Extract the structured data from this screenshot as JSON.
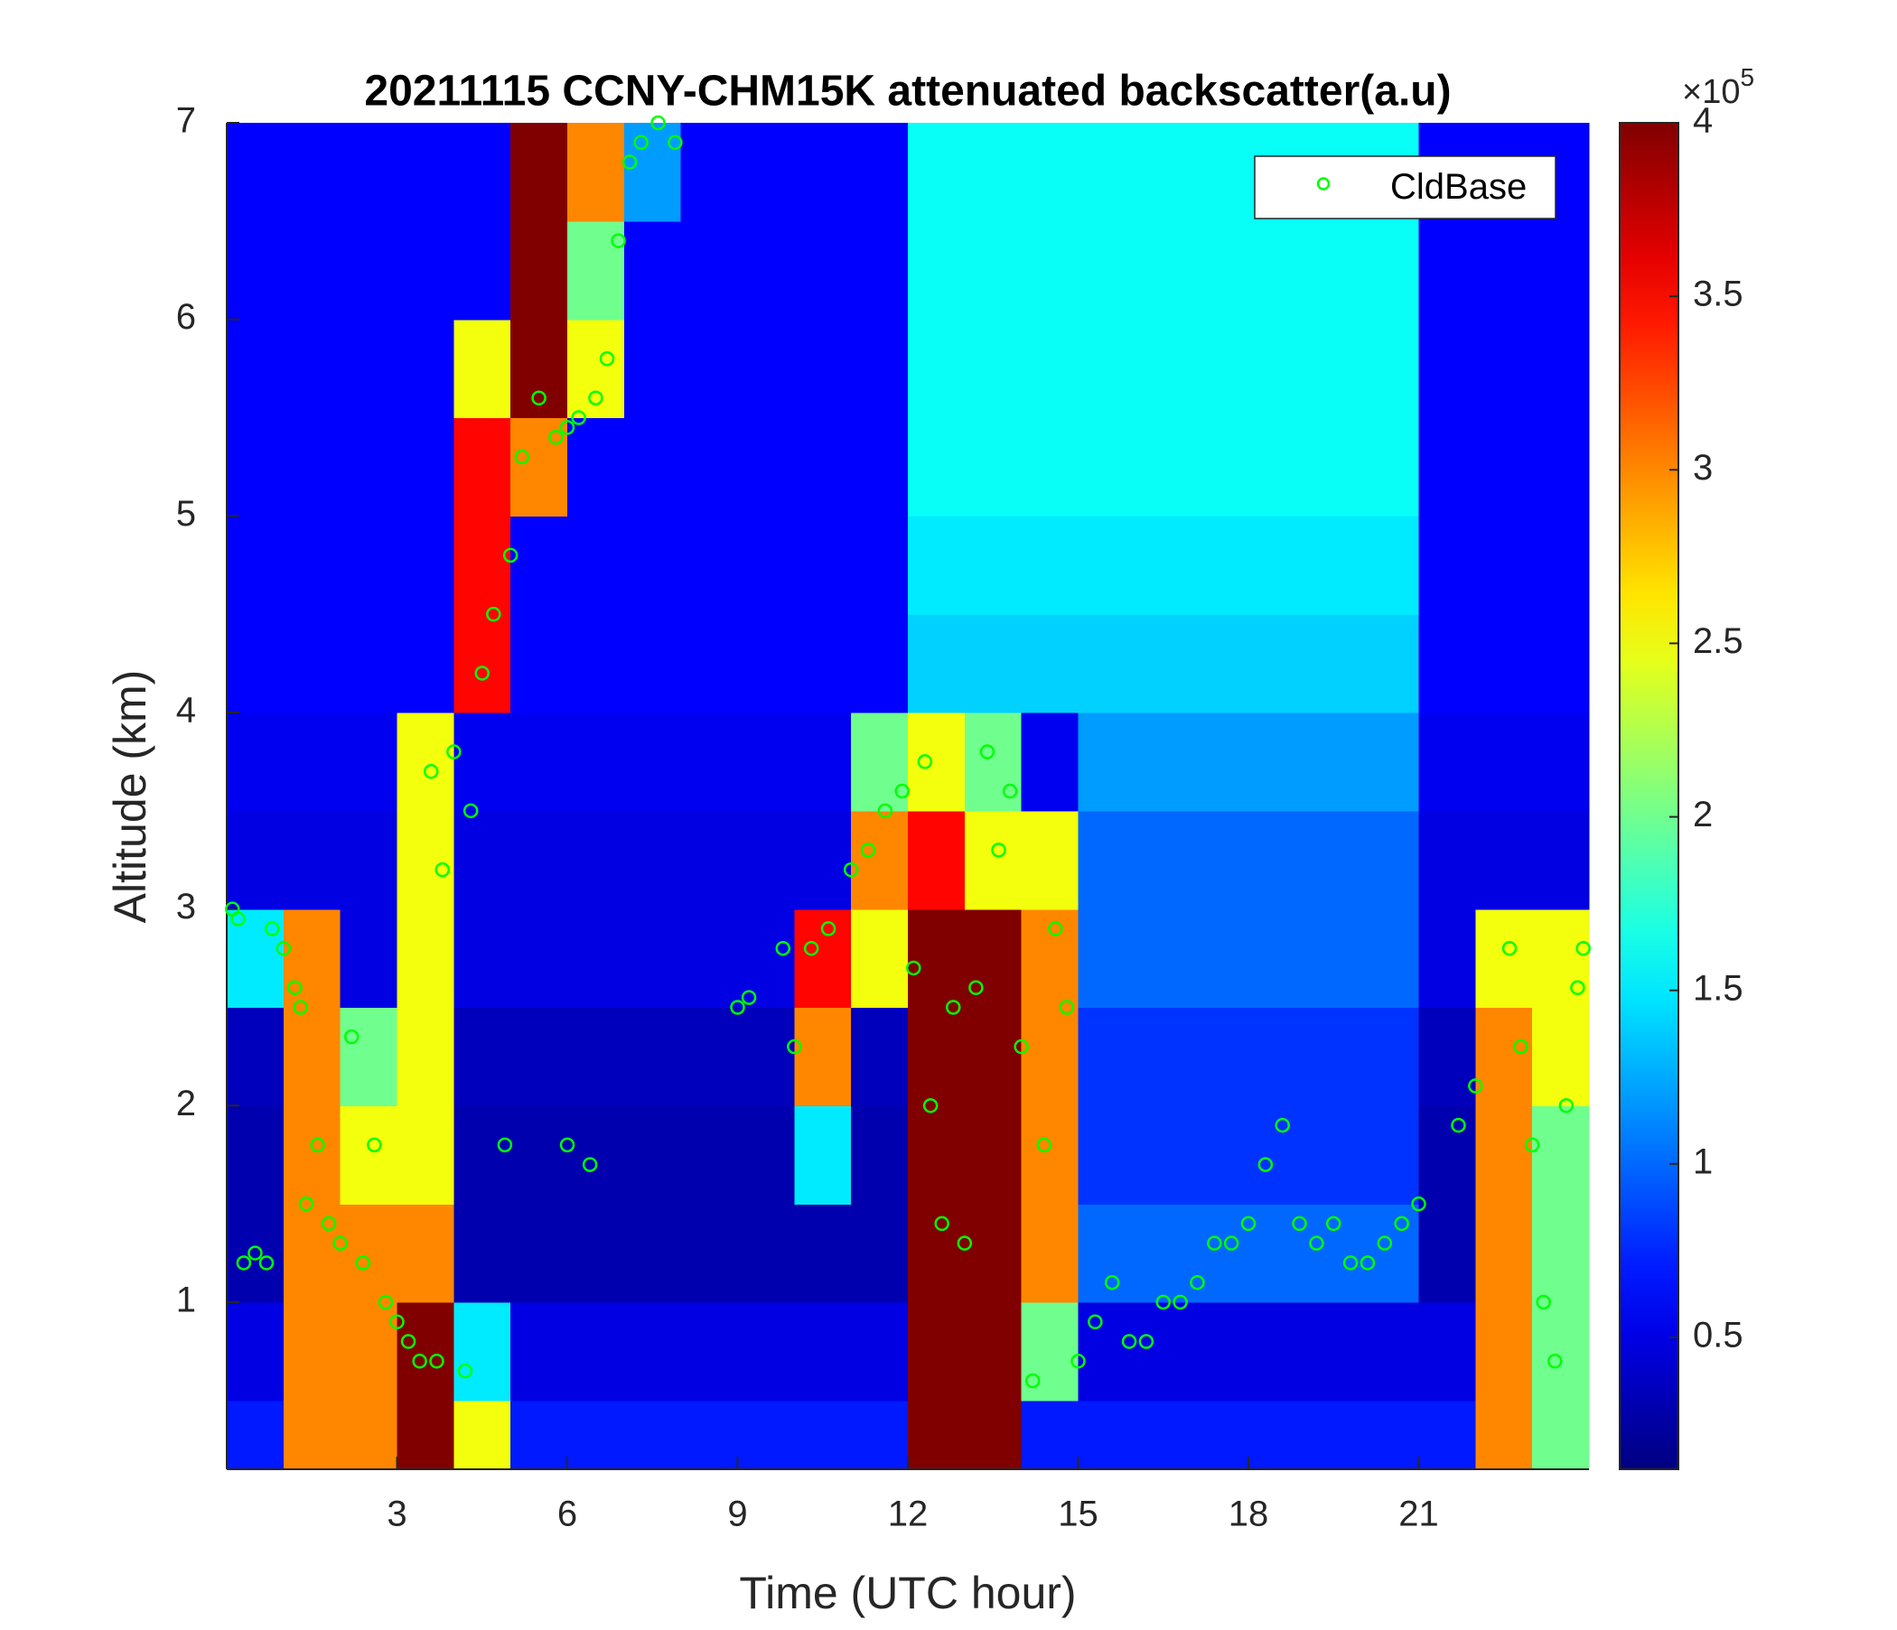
{
  "chart_data": {
    "type": "heatmap",
    "title": "20211115 CCNY-CHM15K attenuated backscatter(a.u)",
    "xlabel": "Time (UTC hour)",
    "ylabel": "Altitude (km)",
    "xlim": [
      0,
      24
    ],
    "xticks": [
      3,
      6,
      9,
      12,
      15,
      18,
      21
    ],
    "ylim": [
      0.15,
      7
    ],
    "yticks": [
      1,
      2,
      3,
      4,
      5,
      6,
      7
    ],
    "colormap": "jet",
    "clim": [
      0.12,
      4
    ],
    "cticks": [
      0.5,
      1,
      1.5,
      2,
      2.5,
      3,
      3.5,
      4
    ],
    "colorbar_multiplier": {
      "base": "×10",
      "exponent": "5"
    },
    "xbins": [
      0,
      1,
      2,
      3,
      4,
      5,
      6,
      7,
      8,
      9,
      10,
      11,
      12,
      13,
      14,
      15,
      16,
      17,
      18,
      19,
      20,
      21,
      22,
      23,
      24
    ],
    "ybins": [
      0.15,
      0.5,
      1,
      1.5,
      2,
      2.5,
      3,
      3.5,
      4,
      4.5,
      5,
      5.5,
      6,
      6.5,
      7
    ],
    "z": [
      [
        0.7,
        3,
        3,
        4,
        2.5,
        0.7,
        0.7,
        0.7,
        0.7,
        0.7,
        0.7,
        0.7,
        4,
        4,
        0.7,
        0.7,
        0.7,
        0.7,
        0.7,
        0.7,
        0.7,
        0.7,
        3,
        2
      ],
      [
        0.5,
        3,
        3,
        4,
        1.5,
        0.5,
        0.5,
        0.5,
        0.5,
        0.5,
        0.5,
        0.5,
        4,
        4,
        2,
        0.5,
        0.5,
        0.5,
        0.5,
        0.5,
        0.5,
        0.5,
        3,
        2
      ],
      [
        0.3,
        3,
        3,
        3,
        0.3,
        0.3,
        0.3,
        0.3,
        0.3,
        0.3,
        0.3,
        0.3,
        4,
        4,
        3,
        1,
        1,
        1,
        1,
        1,
        1,
        0.3,
        3,
        2
      ],
      [
        0.3,
        3,
        2.5,
        2.5,
        0.3,
        0.3,
        0.3,
        0.3,
        0.3,
        0.3,
        1.5,
        0.3,
        4,
        4,
        3,
        0.8,
        0.8,
        0.8,
        0.8,
        0.8,
        0.8,
        0.3,
        3,
        2
      ],
      [
        0.35,
        3,
        2,
        2.5,
        0.35,
        0.35,
        0.35,
        0.35,
        0.35,
        0.35,
        3,
        0.35,
        4,
        4,
        3,
        0.8,
        0.8,
        0.8,
        0.8,
        0.8,
        0.8,
        0.35,
        3,
        2.5
      ],
      [
        1.5,
        3,
        0.5,
        2.5,
        0.5,
        0.5,
        0.5,
        0.5,
        0.5,
        0.5,
        3.5,
        2.5,
        4,
        4,
        3,
        1,
        1,
        1,
        1,
        1,
        1,
        0.5,
        2.5,
        2.5
      ],
      [
        0.5,
        0.5,
        0.5,
        2.5,
        0.5,
        0.5,
        0.5,
        0.5,
        0.5,
        0.5,
        0.5,
        3,
        3.5,
        2.5,
        2.5,
        1,
        1,
        1,
        1,
        1,
        1,
        0.5,
        0.5,
        0.5
      ],
      [
        0.55,
        0.55,
        0.55,
        2.5,
        0.55,
        0.55,
        0.55,
        0.55,
        0.55,
        0.55,
        0.55,
        2,
        2.5,
        2,
        0.55,
        1.2,
        1.2,
        1.2,
        1.2,
        1.2,
        1.2,
        0.55,
        0.55,
        0.55
      ],
      [
        0.6,
        0.6,
        0.6,
        0.6,
        3.5,
        0.6,
        0.6,
        0.6,
        0.6,
        0.6,
        0.6,
        0.6,
        1.4,
        1.4,
        1.4,
        1.4,
        1.4,
        1.4,
        1.4,
        1.4,
        1.4,
        0.6,
        0.6,
        0.6
      ],
      [
        0.6,
        0.6,
        0.6,
        0.6,
        3.5,
        0.6,
        0.6,
        0.6,
        0.6,
        0.6,
        0.6,
        0.6,
        1.5,
        1.5,
        1.5,
        1.5,
        1.5,
        1.5,
        1.5,
        1.5,
        1.5,
        0.6,
        0.6,
        0.6
      ],
      [
        0.6,
        0.6,
        0.6,
        0.6,
        3.5,
        3,
        0.6,
        0.6,
        0.6,
        0.6,
        0.6,
        0.6,
        1.6,
        1.6,
        1.6,
        1.6,
        1.6,
        1.6,
        1.6,
        1.6,
        1.6,
        0.6,
        0.6,
        0.6
      ],
      [
        0.6,
        0.6,
        0.6,
        0.6,
        2.5,
        4,
        2.5,
        0.6,
        0.6,
        0.6,
        0.6,
        0.6,
        1.6,
        1.6,
        1.6,
        1.6,
        1.6,
        1.6,
        1.6,
        1.6,
        1.6,
        0.6,
        0.6,
        0.6
      ],
      [
        0.6,
        0.6,
        0.6,
        0.6,
        0.6,
        4,
        2,
        0.6,
        0.6,
        0.6,
        0.6,
        0.6,
        1.6,
        1.6,
        1.6,
        1.6,
        1.6,
        1.6,
        1.6,
        1.6,
        1.6,
        0.6,
        0.6,
        0.6
      ],
      [
        0.6,
        0.6,
        0.6,
        0.6,
        0.6,
        4,
        3,
        1.2,
        0.6,
        0.6,
        0.6,
        0.6,
        1.6,
        1.6,
        1.6,
        1.6,
        1.6,
        1.6,
        1.6,
        1.6,
        1.6,
        0.6,
        0.6,
        0.6
      ]
    ],
    "legend": "northeast",
    "series": [
      {
        "name": "CldBase",
        "type": "scatter",
        "color": "#00ff00",
        "x": [
          0.1,
          0.2,
          0.3,
          0.5,
          0.7,
          0.8,
          1.0,
          1.2,
          1.3,
          1.4,
          1.6,
          1.8,
          2.0,
          2.2,
          2.4,
          2.6,
          2.8,
          3.0,
          3.2,
          3.4,
          3.6,
          3.7,
          3.8,
          4.0,
          4.2,
          4.3,
          4.5,
          4.7,
          5.0,
          5.2,
          5.5,
          5.8,
          6.0,
          6.2,
          6.5,
          6.7,
          6.9,
          7.1,
          7.3,
          7.6,
          7.9,
          4.9,
          6.0,
          6.4,
          9.0,
          9.2,
          9.8,
          10.0,
          10.3,
          10.6,
          11.0,
          11.3,
          11.6,
          11.9,
          12.1,
          12.3,
          12.4,
          12.6,
          12.8,
          13.0,
          13.2,
          13.4,
          13.6,
          13.8,
          14.0,
          14.2,
          14.4,
          14.6,
          14.8,
          15.0,
          15.3,
          15.6,
          15.9,
          16.2,
          16.5,
          16.8,
          17.1,
          17.4,
          17.7,
          18.0,
          18.3,
          18.6,
          18.9,
          19.2,
          19.5,
          19.8,
          20.1,
          20.4,
          20.7,
          21.0,
          21.7,
          22.0,
          22.6,
          22.8,
          23.0,
          23.2,
          23.4,
          23.6,
          23.8,
          23.9
        ],
        "values": [
          3.0,
          2.95,
          1.2,
          1.25,
          1.2,
          2.9,
          2.8,
          2.6,
          2.5,
          1.5,
          1.8,
          1.4,
          1.3,
          2.35,
          1.2,
          1.8,
          1.0,
          0.9,
          0.8,
          0.7,
          3.7,
          0.7,
          3.2,
          3.8,
          0.65,
          3.5,
          4.2,
          4.5,
          4.8,
          5.3,
          5.6,
          5.4,
          5.45,
          5.5,
          5.6,
          5.8,
          6.4,
          6.8,
          6.9,
          7.0,
          6.9,
          1.8,
          1.8,
          1.7,
          2.5,
          2.55,
          2.8,
          2.3,
          2.8,
          2.9,
          3.2,
          3.3,
          3.5,
          3.6,
          2.7,
          3.75,
          2.0,
          1.4,
          2.5,
          1.3,
          2.6,
          3.8,
          3.3,
          3.6,
          2.3,
          0.6,
          1.8,
          2.9,
          2.5,
          0.7,
          0.9,
          1.1,
          0.8,
          0.8,
          1.0,
          1.0,
          1.1,
          1.3,
          1.3,
          1.4,
          1.7,
          1.9,
          1.4,
          1.3,
          1.4,
          1.2,
          1.2,
          1.3,
          1.4,
          1.5,
          1.9,
          2.1,
          2.8,
          2.3,
          1.8,
          1.0,
          0.7,
          2.0,
          2.6,
          2.8
        ]
      }
    ]
  }
}
